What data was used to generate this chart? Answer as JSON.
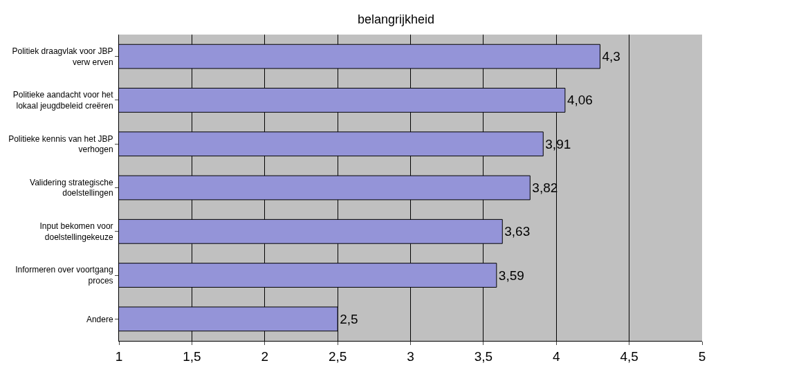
{
  "chart_data": {
    "type": "bar",
    "orientation": "horizontal",
    "title": "belangrijkheid",
    "categories": [
      "Politiek draagvlak voor JBP verw erven",
      "Politieke aandacht voor het lokaal jeugdbeleid creëren",
      "Politieke kennis van het JBP verhogen",
      "Validering strategische doelstellingen",
      "Input bekomen voor doelstellingekeuze",
      "Informeren over voortgang proces",
      "Andere"
    ],
    "values": [
      4.3,
      4.06,
      3.91,
      3.82,
      3.63,
      3.59,
      2.5
    ],
    "value_labels": [
      "4,3",
      "4,06",
      "3,91",
      "3,82",
      "3,63",
      "3,59",
      "2,5"
    ],
    "color": "#9494d8",
    "xlim": [
      1,
      5
    ],
    "xticks": [
      1,
      {
        "value": 1.5,
        "label": "1,5"
      },
      2,
      {
        "value": 2.5,
        "label": "2,5"
      },
      3,
      {
        "value": 3.5,
        "label": "3,5"
      },
      4,
      {
        "value": 4.5,
        "label": "4,5"
      },
      5
    ],
    "grid": "x"
  }
}
